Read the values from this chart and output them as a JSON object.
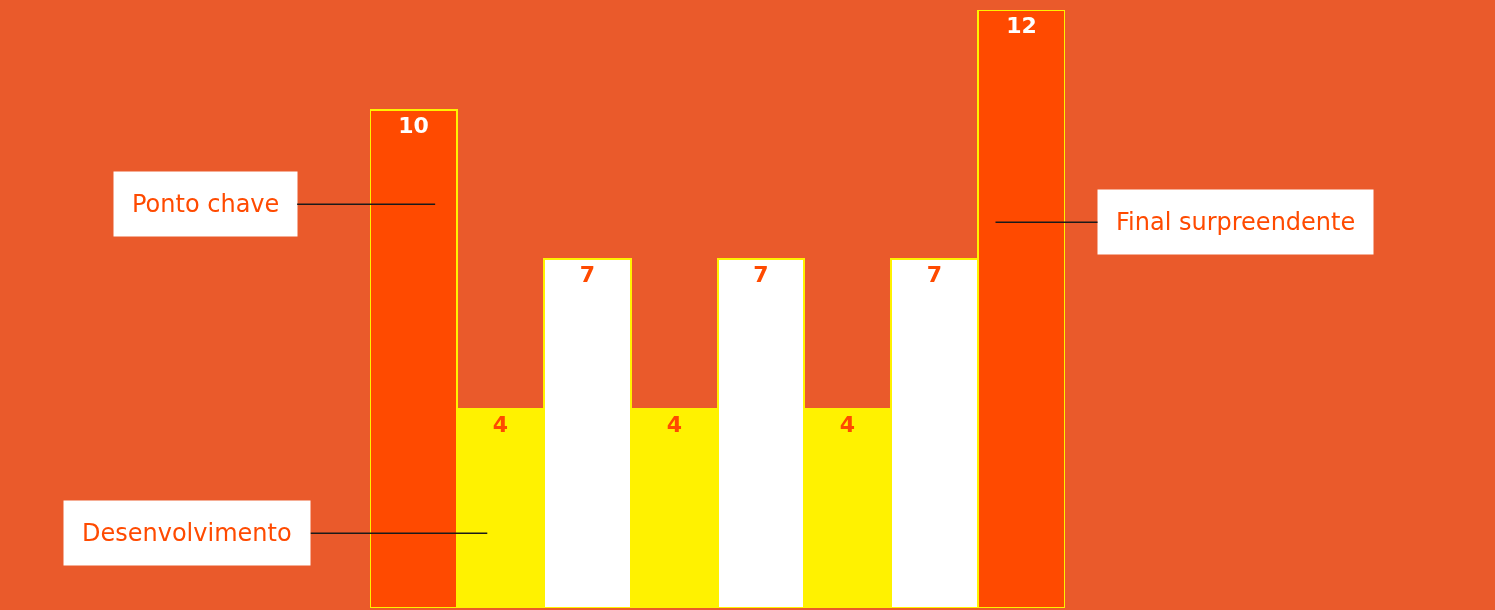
{
  "chart_data": {
    "type": "bar",
    "categories": [
      null,
      null,
      null,
      null,
      null,
      null,
      null,
      null
    ],
    "values": [
      10,
      4,
      7,
      4,
      7,
      4,
      7,
      12
    ],
    "colors": [
      "#ff4a00",
      "#fff200",
      "#ffffff",
      "#fff200",
      "#ffffff",
      "#fff200",
      "#ffffff",
      "#ff4a00"
    ],
    "data_labels": true,
    "ylim": [
      0,
      12
    ],
    "tick_labels": false,
    "grid": false,
    "legend": false,
    "annotations": [
      "Ponto chave",
      "Desenvolvimento",
      "Final surpreendente"
    ]
  }
}
